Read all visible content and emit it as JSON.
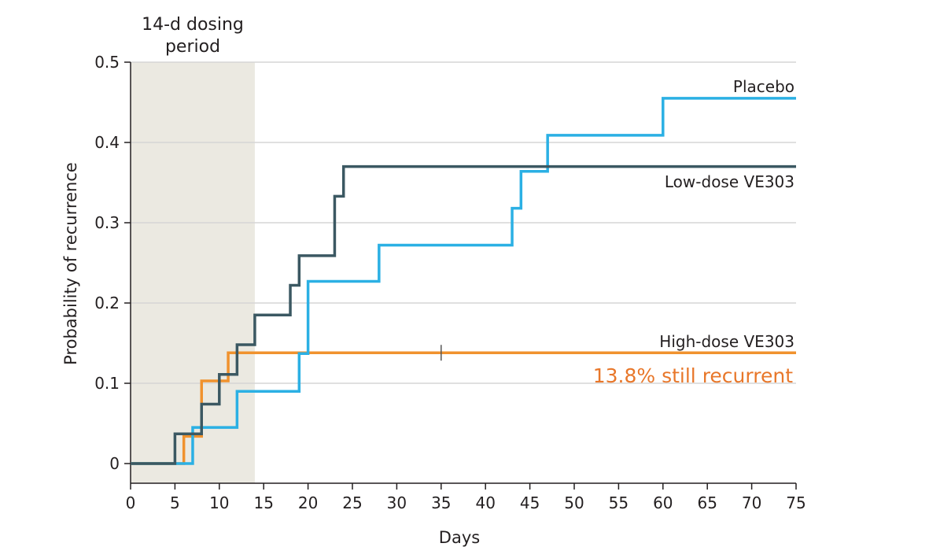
{
  "chart_data": {
    "type": "line",
    "step": true,
    "xlabel": "Days",
    "ylabel": "Probability of recurrence",
    "xlim": [
      0,
      75
    ],
    "ylim": [
      0,
      0.5
    ],
    "x_ticks": [
      0,
      5,
      10,
      15,
      20,
      25,
      30,
      35,
      40,
      45,
      50,
      55,
      60,
      65,
      70,
      75
    ],
    "y_ticks": [
      0,
      0.1,
      0.2,
      0.3,
      0.4,
      0.5
    ],
    "y_tick_labels": [
      "0",
      "0.1",
      "0.2",
      "0.3",
      "0.4",
      "0.5"
    ],
    "grid": "horizontal",
    "shaded_region": {
      "x_range": [
        0,
        14
      ],
      "label_lines": [
        "14-d dosing",
        "period"
      ],
      "color": "#ebe9e1"
    },
    "series": [
      {
        "name": "Placebo",
        "color": "#2bb0e4",
        "points": [
          [
            0,
            0
          ],
          [
            7,
            0
          ],
          [
            7,
            0.045
          ],
          [
            12,
            0.045
          ],
          [
            12,
            0.09
          ],
          [
            19,
            0.09
          ],
          [
            19,
            0.137
          ],
          [
            20,
            0.137
          ],
          [
            20,
            0.227
          ],
          [
            28,
            0.227
          ],
          [
            28,
            0.272
          ],
          [
            43,
            0.272
          ],
          [
            43,
            0.318
          ],
          [
            44,
            0.318
          ],
          [
            44,
            0.364
          ],
          [
            47,
            0.364
          ],
          [
            47,
            0.409
          ],
          [
            60,
            0.409
          ],
          [
            60,
            0.455
          ],
          [
            75,
            0.455
          ]
        ]
      },
      {
        "name": "Low-dose VE303",
        "color": "#3b5862",
        "points": [
          [
            0,
            0
          ],
          [
            5,
            0
          ],
          [
            5,
            0.037
          ],
          [
            8,
            0.037
          ],
          [
            8,
            0.074
          ],
          [
            10,
            0.074
          ],
          [
            10,
            0.111
          ],
          [
            12,
            0.111
          ],
          [
            12,
            0.148
          ],
          [
            14,
            0.148
          ],
          [
            14,
            0.185
          ],
          [
            18,
            0.185
          ],
          [
            18,
            0.222
          ],
          [
            19,
            0.222
          ],
          [
            19,
            0.259
          ],
          [
            23,
            0.259
          ],
          [
            23,
            0.333
          ],
          [
            24,
            0.333
          ],
          [
            24,
            0.37
          ],
          [
            75,
            0.37
          ]
        ]
      },
      {
        "name": "High-dose VE303",
        "color": "#f0922e",
        "points": [
          [
            0,
            0
          ],
          [
            6,
            0
          ],
          [
            6,
            0.034
          ],
          [
            8,
            0.034
          ],
          [
            8,
            0.103
          ],
          [
            11,
            0.103
          ],
          [
            11,
            0.138
          ],
          [
            75,
            0.138
          ]
        ],
        "censored": [
          [
            35,
            0.138
          ]
        ]
      }
    ],
    "annotation": {
      "text": "13.8% still recurrent",
      "color": "#e8772a"
    }
  }
}
